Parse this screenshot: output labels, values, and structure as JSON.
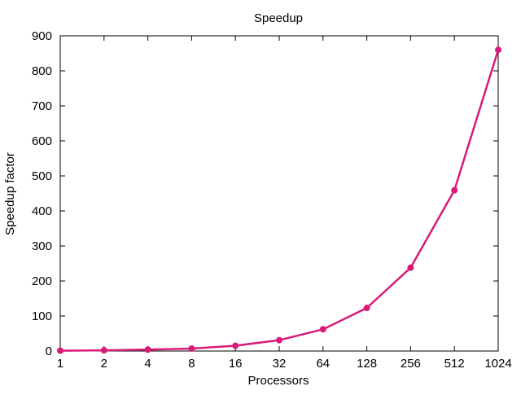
{
  "chart_data": {
    "type": "line",
    "title": "Speedup",
    "xlabel": "Processors",
    "ylabel": "Speedup factor",
    "x_scale": "log2",
    "categories": [
      "1",
      "2",
      "4",
      "8",
      "16",
      "32",
      "64",
      "128",
      "256",
      "512",
      "1024"
    ],
    "x": [
      1,
      2,
      4,
      8,
      16,
      32,
      64,
      128,
      256,
      512,
      1024
    ],
    "ylim": [
      0,
      900
    ],
    "yticks": [
      0,
      100,
      200,
      300,
      400,
      500,
      600,
      700,
      800,
      900
    ],
    "grid": false,
    "legend": "none",
    "series": [
      {
        "color": "#d81b78",
        "marker": "circle",
        "values": [
          1,
          2,
          4,
          7,
          15,
          31,
          62,
          123,
          238,
          459,
          860
        ]
      }
    ]
  }
}
